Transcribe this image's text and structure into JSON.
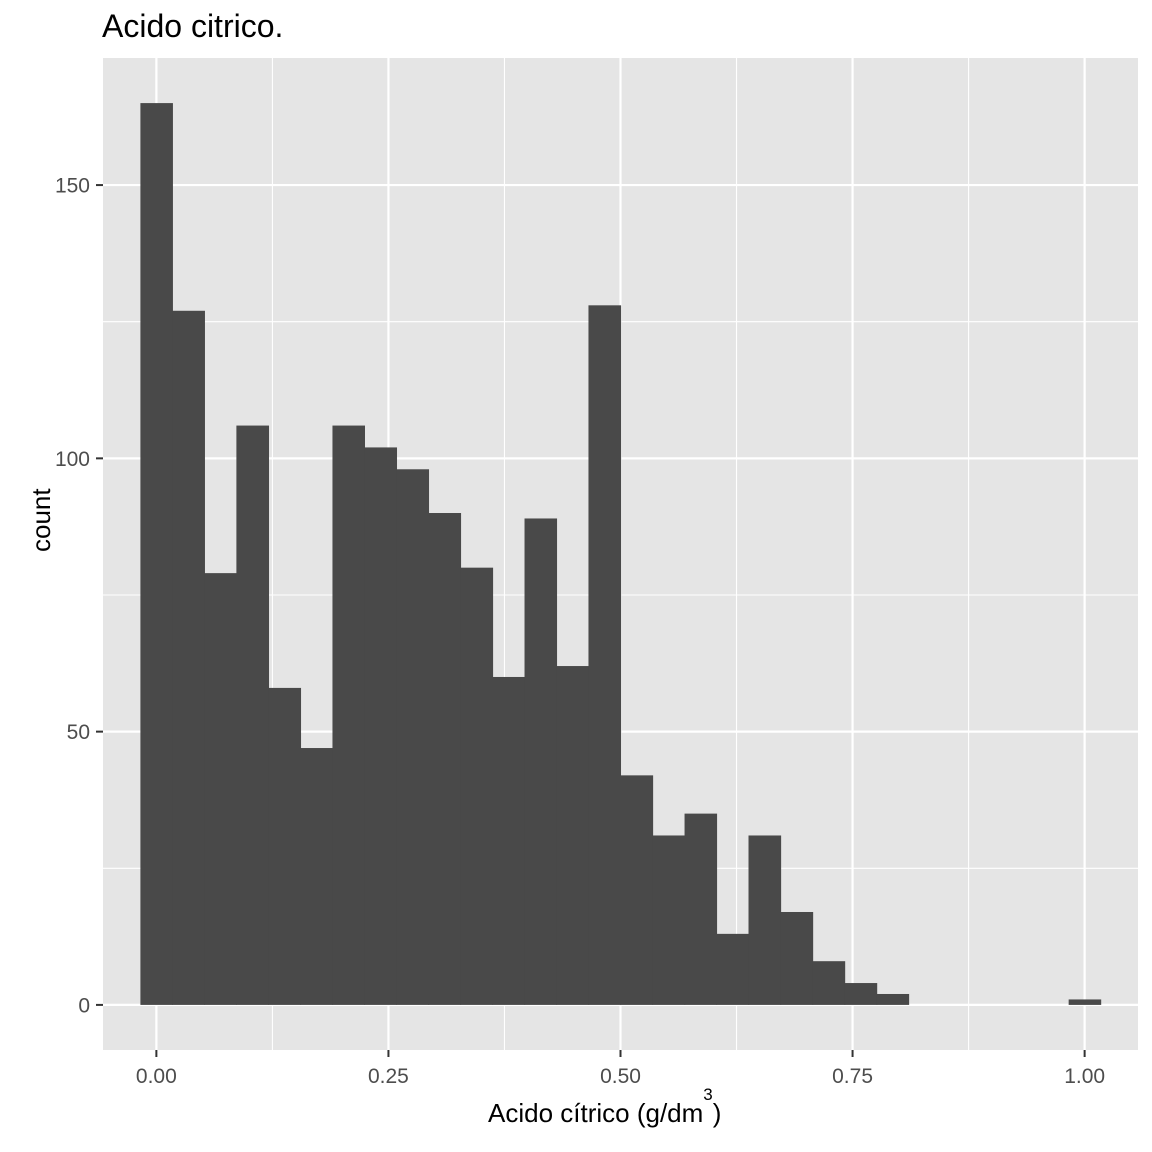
{
  "chart_data": {
    "type": "histogram",
    "title": "Acido citrico.",
    "xlabel_main": "Acido cítrico (g/dm",
    "xlabel_sup": "3",
    "xlabel_close": ")",
    "ylabel": "count",
    "xlim": [
      -0.0575,
      1.0575
    ],
    "ylim": [
      -8.25,
      173.25
    ],
    "x_ticks": [
      0,
      0.25,
      0.5,
      0.75,
      1.0
    ],
    "x_tick_labels": [
      "0.00",
      "0.25",
      "0.50",
      "0.75",
      "1.00"
    ],
    "x_minor_ticks": [
      0.125,
      0.375,
      0.625,
      0.875
    ],
    "y_ticks": [
      0,
      50,
      100,
      150
    ],
    "y_tick_labels": [
      "0",
      "50",
      "100",
      "150"
    ],
    "y_minor_ticks": [
      25,
      75,
      125
    ],
    "bin_width": 0.0345,
    "bins": [
      {
        "start": -0.0172,
        "end": 0.0172,
        "count": 165
      },
      {
        "start": 0.0172,
        "end": 0.0517,
        "count": 127
      },
      {
        "start": 0.0517,
        "end": 0.0862,
        "count": 79
      },
      {
        "start": 0.0862,
        "end": 0.1207,
        "count": 106
      },
      {
        "start": 0.1207,
        "end": 0.1552,
        "count": 58
      },
      {
        "start": 0.1552,
        "end": 0.1897,
        "count": 47
      },
      {
        "start": 0.1897,
        "end": 0.2241,
        "count": 106
      },
      {
        "start": 0.2241,
        "end": 0.2586,
        "count": 102
      },
      {
        "start": 0.2586,
        "end": 0.2931,
        "count": 98
      },
      {
        "start": 0.2931,
        "end": 0.3276,
        "count": 90
      },
      {
        "start": 0.3276,
        "end": 0.3621,
        "count": 80
      },
      {
        "start": 0.3621,
        "end": 0.3966,
        "count": 60
      },
      {
        "start": 0.3966,
        "end": 0.431,
        "count": 89
      },
      {
        "start": 0.431,
        "end": 0.4655,
        "count": 62
      },
      {
        "start": 0.4655,
        "end": 0.5,
        "count": 128
      },
      {
        "start": 0.5,
        "end": 0.5345,
        "count": 42
      },
      {
        "start": 0.5345,
        "end": 0.569,
        "count": 31
      },
      {
        "start": 0.569,
        "end": 0.6034,
        "count": 35
      },
      {
        "start": 0.6034,
        "end": 0.6379,
        "count": 13
      },
      {
        "start": 0.6379,
        "end": 0.6724,
        "count": 31
      },
      {
        "start": 0.6724,
        "end": 0.7069,
        "count": 17
      },
      {
        "start": 0.7069,
        "end": 0.7414,
        "count": 8
      },
      {
        "start": 0.7414,
        "end": 0.7759,
        "count": 4
      },
      {
        "start": 0.7759,
        "end": 0.8103,
        "count": 2
      },
      {
        "start": 0.8103,
        "end": 0.8448,
        "count": 0
      },
      {
        "start": 0.8448,
        "end": 0.8793,
        "count": 0
      },
      {
        "start": 0.8793,
        "end": 0.9138,
        "count": 0
      },
      {
        "start": 0.9138,
        "end": 0.9483,
        "count": 0
      },
      {
        "start": 0.9483,
        "end": 0.9828,
        "count": 0
      },
      {
        "start": 0.9828,
        "end": 1.0172,
        "count": 1
      }
    ],
    "colors": {
      "panel": "#e5e5e5",
      "grid": "#ffffff",
      "bar": "#494949",
      "tick_text": "#4d4d4d",
      "tick_mark": "#333333"
    }
  }
}
